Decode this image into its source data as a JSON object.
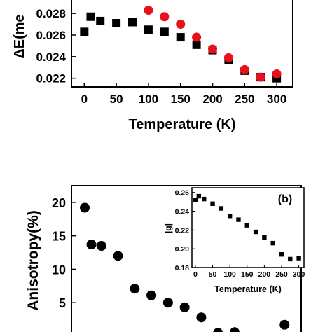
{
  "chart_data": [
    {
      "type": "scatter",
      "title": "",
      "xlabel": "Temperature (K)",
      "ylabel": "ΔE(me",
      "xlim": [
        -20,
        325
      ],
      "ylim": [
        0.0212,
        0.0295
      ],
      "xticks": [
        0,
        50,
        100,
        150,
        200,
        250,
        300
      ],
      "yticks": [
        0.022,
        0.024,
        0.026,
        0.028
      ],
      "ytick_labels": [
        "0.022",
        "0.024",
        "0.026",
        "0.028"
      ],
      "grid": false,
      "series": [
        {
          "marker": "square",
          "color": "#000000",
          "x": [
            0,
            10,
            25,
            50,
            75,
            100,
            125,
            150,
            175,
            200,
            225,
            250,
            275,
            300
          ],
          "y": [
            0.0263,
            0.0277,
            0.0273,
            0.0271,
            0.0272,
            0.0265,
            0.0263,
            0.0258,
            0.0251,
            0.0246,
            0.0237,
            0.0227,
            0.0221,
            0.022
          ]
        },
        {
          "marker": "circle",
          "color": "#e8101a",
          "x": [
            100,
            125,
            150,
            175,
            200,
            225,
            250,
            275,
            300
          ],
          "y": [
            0.0283,
            0.0277,
            0.027,
            0.0258,
            0.0247,
            0.0239,
            0.0228,
            0.0221,
            0.0224
          ]
        }
      ]
    },
    {
      "type": "scatter",
      "title": "",
      "xlabel": "",
      "ylabel": "Anisotropy(%)",
      "xlim": [
        -20,
        325
      ],
      "ylim": [
        0,
        22.5
      ],
      "yticks": [
        5,
        10,
        15,
        20
      ],
      "ytick_labels": [
        "5",
        "10",
        "15",
        "20"
      ],
      "grid": false,
      "series": [
        {
          "marker": "circle",
          "color": "#000000",
          "x": [
            0,
            10,
            25,
            50,
            75,
            100,
            125,
            150,
            175,
            200,
            225,
            300
          ],
          "y": [
            19.2,
            13.7,
            13.5,
            12.0,
            7.1,
            6.1,
            5.0,
            4.3,
            2.8,
            0.5,
            0.6,
            1.7
          ]
        }
      ]
    },
    {
      "type": "scatter",
      "title": "",
      "panel_label": "(b)",
      "xlabel": "Temperature (K)",
      "ylabel": "|g|",
      "xlim": [
        -10,
        315
      ],
      "ylim": [
        0.18,
        0.265
      ],
      "xticks": [
        0,
        50,
        100,
        150,
        200,
        250,
        300
      ],
      "yticks": [
        0.18,
        0.2,
        0.22,
        0.24,
        0.26
      ],
      "ytick_labels": [
        "0.18",
        "0.20",
        "0.22",
        "0.24",
        "0.26"
      ],
      "grid": false,
      "series": [
        {
          "marker": "square",
          "color": "#000000",
          "x": [
            0,
            10,
            25,
            50,
            75,
            100,
            125,
            150,
            175,
            200,
            225,
            250,
            275,
            300
          ],
          "y": [
            0.252,
            0.256,
            0.253,
            0.248,
            0.243,
            0.235,
            0.231,
            0.225,
            0.218,
            0.212,
            0.206,
            0.194,
            0.189,
            0.19
          ]
        }
      ]
    }
  ]
}
